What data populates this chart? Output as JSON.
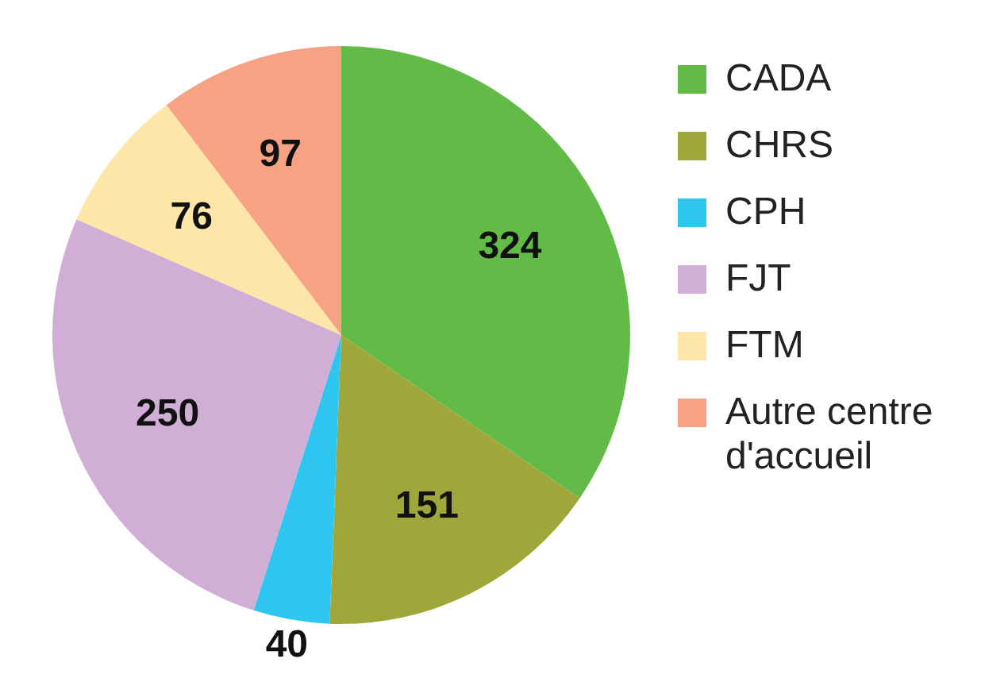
{
  "chart_data": {
    "type": "pie",
    "categories": [
      "CADA",
      "CHRS",
      "CPH",
      "FJT",
      "FTM",
      "Autre centre d'accueil"
    ],
    "values": [
      324,
      151,
      40,
      250,
      76,
      97
    ],
    "colors": [
      "#62bb46",
      "#a0a73a",
      "#2ec6f0",
      "#d0aed6",
      "#fde6a8",
      "#f7a283"
    ],
    "data_labels": true,
    "legend": "right"
  }
}
